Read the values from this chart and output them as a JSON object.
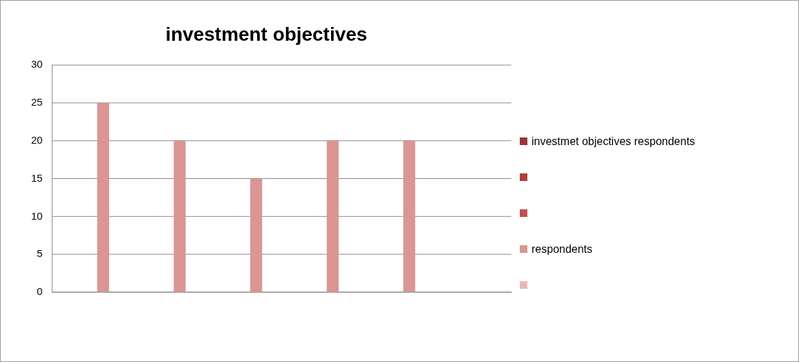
{
  "chart_data": {
    "type": "bar",
    "title": "investment objectives",
    "categories": [
      null,
      null,
      null,
      null,
      null,
      null
    ],
    "series": [
      {
        "name": "investmet objectives respondents",
        "color": "#953735",
        "values": [
          null,
          null,
          null,
          null,
          null,
          null
        ]
      },
      {
        "color": "#b0413e",
        "values": [
          null,
          null,
          null,
          null,
          null,
          null
        ]
      },
      {
        "color": "#c0504d",
        "values": [
          null,
          null,
          null,
          null,
          null,
          null
        ]
      },
      {
        "name": "respondents",
        "color": "#d99694",
        "values": [
          25,
          20,
          15,
          20,
          20,
          null
        ]
      },
      {
        "color": "#e6b9b8",
        "values": [
          null,
          null,
          null,
          null,
          null,
          null
        ]
      }
    ],
    "ylim": [
      0,
      30
    ],
    "yticks": [
      0,
      5,
      10,
      15,
      20,
      25,
      30
    ],
    "grid": "y",
    "legend": "right"
  }
}
